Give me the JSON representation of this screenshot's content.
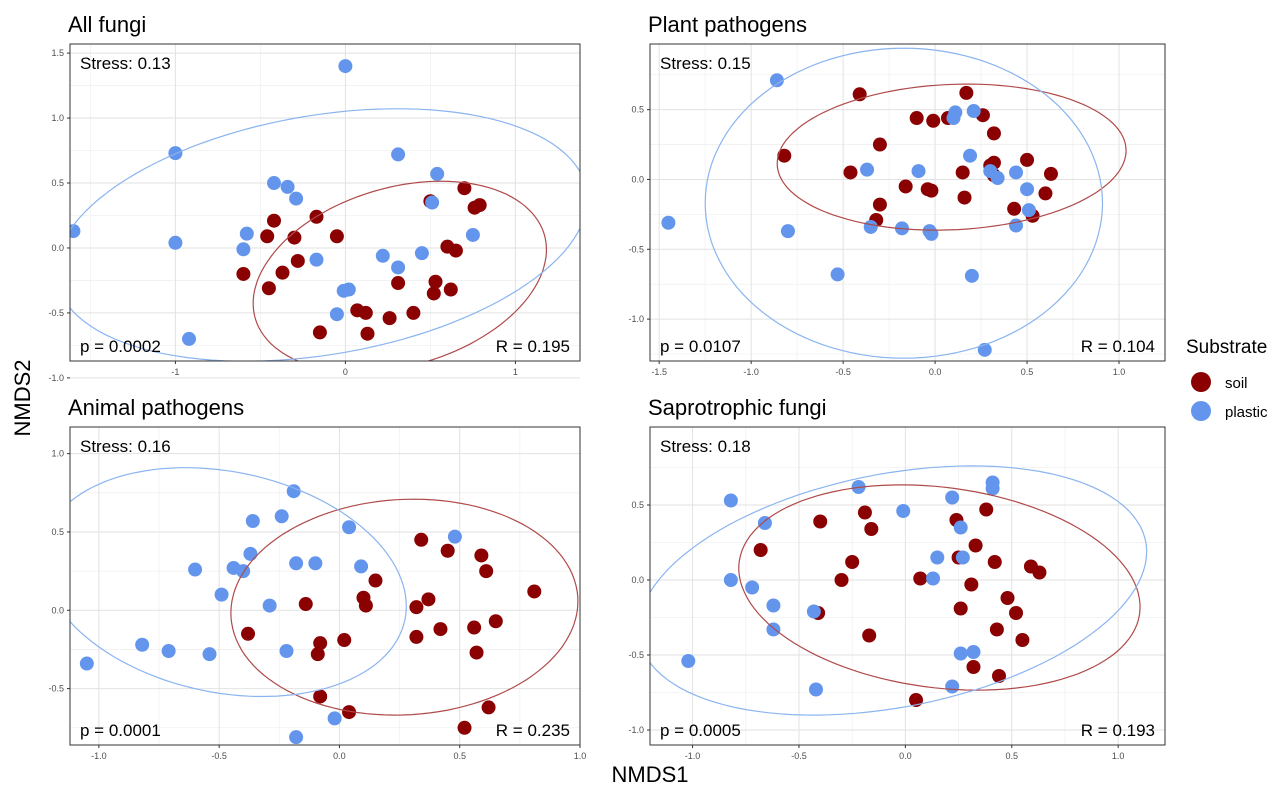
{
  "axis_titles": {
    "x": "NMDS1",
    "y": "NMDS2"
  },
  "legend": {
    "title": "Substrate",
    "items": [
      {
        "label": "soil",
        "color": "#8b0000"
      },
      {
        "label": "plastic",
        "color": "#6495ed"
      }
    ]
  },
  "chart_data": [
    {
      "type": "scatter",
      "title": "All fungi",
      "stress": "Stress: 0.13",
      "p_value": "p = 0.0002",
      "r_value": "R = 0.195",
      "xlim": [
        -1.62,
        1.38
      ],
      "ylim": [
        -0.87,
        1.57
      ],
      "xticks": [
        -1,
        0,
        1
      ],
      "yticks": [
        -1.0,
        -0.5,
        0.0,
        0.5,
        1.0,
        1.5
      ],
      "grid": true,
      "series": [
        {
          "name": "soil",
          "color": "#8b0000",
          "points": [
            [
              -0.46,
              0.09
            ],
            [
              -0.42,
              0.21
            ],
            [
              -0.3,
              0.08
            ],
            [
              -0.17,
              0.24
            ],
            [
              -0.05,
              0.09
            ],
            [
              -0.6,
              -0.2
            ],
            [
              -0.45,
              -0.31
            ],
            [
              -0.37,
              -0.19
            ],
            [
              -0.28,
              -0.1
            ],
            [
              -0.15,
              -0.65
            ],
            [
              0.07,
              -0.48
            ],
            [
              0.12,
              -0.5
            ],
            [
              0.13,
              -0.66
            ],
            [
              0.26,
              -0.54
            ],
            [
              0.31,
              -0.27
            ],
            [
              0.4,
              -0.5
            ],
            [
              0.5,
              0.36
            ],
            [
              0.53,
              -0.26
            ],
            [
              0.52,
              -0.35
            ],
            [
              0.62,
              -0.32
            ],
            [
              0.6,
              0.01
            ],
            [
              0.65,
              -0.02
            ],
            [
              0.7,
              0.46
            ],
            [
              0.76,
              0.31
            ],
            [
              0.79,
              0.33
            ]
          ]
        },
        {
          "name": "plastic",
          "color": "#6495ed",
          "points": [
            [
              -1.6,
              0.13
            ],
            [
              -1.0,
              0.73
            ],
            [
              -1.0,
              0.04
            ],
            [
              -0.92,
              -0.7
            ],
            [
              -0.6,
              -0.01
            ],
            [
              -0.58,
              0.11
            ],
            [
              -0.42,
              0.5
            ],
            [
              -0.34,
              0.47
            ],
            [
              -0.29,
              0.38
            ],
            [
              -0.17,
              -0.09
            ],
            [
              -0.05,
              -0.51
            ],
            [
              -0.01,
              -0.33
            ],
            [
              0.02,
              -0.32
            ],
            [
              0.0,
              1.4
            ],
            [
              0.22,
              -0.06
            ],
            [
              0.31,
              -0.15
            ],
            [
              0.31,
              0.72
            ],
            [
              0.45,
              -0.04
            ],
            [
              0.51,
              0.35
            ],
            [
              0.54,
              0.57
            ],
            [
              0.75,
              0.1
            ]
          ]
        }
      ],
      "ellipses": [
        {
          "group": "soil",
          "color": "#b04a4a",
          "cx": 0.32,
          "cy": -0.22,
          "rx": 0.92,
          "ry": 0.66,
          "angle": 30
        },
        {
          "group": "plastic",
          "color": "#8ab4f0",
          "cx": -0.14,
          "cy": 0.1,
          "rx": 1.6,
          "ry": 0.91,
          "angle": 15
        }
      ]
    },
    {
      "type": "scatter",
      "title": "Plant pathogens",
      "stress": "Stress: 0.15",
      "p_value": "p = 0.0107",
      "r_value": "R = 0.104",
      "xlim": [
        -1.55,
        1.25
      ],
      "ylim": [
        -1.3,
        0.97
      ],
      "xticks": [
        -1.5,
        -1.0,
        -0.5,
        0.0,
        0.5,
        1.0
      ],
      "yticks": [
        -1.0,
        -0.5,
        0.0,
        0.5
      ],
      "grid": true,
      "series": [
        {
          "name": "soil",
          "color": "#8b0000",
          "points": [
            [
              -0.82,
              0.17
            ],
            [
              -0.41,
              0.61
            ],
            [
              -0.46,
              0.05
            ],
            [
              -0.3,
              0.25
            ],
            [
              -0.3,
              -0.18
            ],
            [
              -0.32,
              -0.29
            ],
            [
              -0.16,
              -0.05
            ],
            [
              -0.1,
              0.44
            ],
            [
              -0.04,
              -0.07
            ],
            [
              -0.02,
              -0.08
            ],
            [
              -0.01,
              0.42
            ],
            [
              0.07,
              0.44
            ],
            [
              0.17,
              0.62
            ],
            [
              0.26,
              0.46
            ],
            [
              0.15,
              0.05
            ],
            [
              0.16,
              -0.13
            ],
            [
              0.3,
              0.1
            ],
            [
              0.32,
              0.03
            ],
            [
              0.32,
              0.12
            ],
            [
              0.32,
              0.33
            ],
            [
              0.43,
              -0.21
            ],
            [
              0.5,
              0.14
            ],
            [
              0.53,
              -0.26
            ],
            [
              0.6,
              -0.1
            ],
            [
              0.63,
              0.04
            ]
          ]
        },
        {
          "name": "plastic",
          "color": "#6495ed",
          "points": [
            [
              -1.45,
              -0.31
            ],
            [
              -0.86,
              0.71
            ],
            [
              -0.8,
              -0.37
            ],
            [
              -0.53,
              -0.68
            ],
            [
              -0.37,
              0.07
            ],
            [
              -0.35,
              -0.34
            ],
            [
              -0.18,
              -0.35
            ],
            [
              -0.09,
              0.06
            ],
            [
              -0.03,
              -0.37
            ],
            [
              -0.02,
              -0.39
            ],
            [
              0.1,
              0.44
            ],
            [
              0.11,
              0.48
            ],
            [
              0.19,
              0.17
            ],
            [
              0.21,
              0.49
            ],
            [
              0.2,
              -0.69
            ],
            [
              0.27,
              -1.22
            ],
            [
              0.3,
              0.06
            ],
            [
              0.34,
              0.01
            ],
            [
              0.44,
              0.05
            ],
            [
              0.44,
              -0.33
            ],
            [
              0.5,
              -0.07
            ],
            [
              0.51,
              -0.22
            ]
          ]
        }
      ],
      "ellipses": [
        {
          "group": "soil",
          "color": "#b04a4a",
          "cx": 0.09,
          "cy": 0.16,
          "rx": 0.95,
          "ry": 0.52,
          "angle": 4
        },
        {
          "group": "plastic",
          "color": "#8ab4f0",
          "cx": -0.17,
          "cy": -0.17,
          "rx": 1.08,
          "ry": 1.11,
          "angle": 0
        }
      ]
    },
    {
      "type": "scatter",
      "title": "Animal pathogens",
      "stress": "Stress: 0.16",
      "p_value": "p = 0.0001",
      "r_value": "R = 0.235",
      "xlim": [
        -1.12,
        1.0
      ],
      "ylim": [
        -0.86,
        1.17
      ],
      "xticks": [
        -1.0,
        -0.5,
        0.0,
        0.5,
        1.0
      ],
      "yticks": [
        -0.5,
        0.0,
        0.5,
        1.0
      ],
      "grid": true,
      "series": [
        {
          "name": "soil",
          "color": "#8b0000",
          "points": [
            [
              -0.38,
              -0.15
            ],
            [
              -0.14,
              0.04
            ],
            [
              -0.08,
              -0.21
            ],
            [
              -0.09,
              -0.28
            ],
            [
              -0.08,
              -0.55
            ],
            [
              0.02,
              -0.19
            ],
            [
              0.04,
              -0.65
            ],
            [
              0.1,
              0.08
            ],
            [
              0.11,
              0.03
            ],
            [
              0.15,
              0.19
            ],
            [
              0.32,
              -0.17
            ],
            [
              0.32,
              0.02
            ],
            [
              0.34,
              0.45
            ],
            [
              0.37,
              0.07
            ],
            [
              0.42,
              -0.12
            ],
            [
              0.45,
              0.38
            ],
            [
              0.56,
              -0.11
            ],
            [
              0.57,
              -0.27
            ],
            [
              0.59,
              0.35
            ],
            [
              0.61,
              0.25
            ],
            [
              0.62,
              -0.62
            ],
            [
              0.65,
              -0.07
            ],
            [
              0.52,
              -0.75
            ],
            [
              0.81,
              0.12
            ]
          ]
        },
        {
          "name": "plastic",
          "color": "#6495ed",
          "points": [
            [
              -1.05,
              -0.34
            ],
            [
              -0.82,
              -0.22
            ],
            [
              -0.71,
              -0.26
            ],
            [
              -0.6,
              0.26
            ],
            [
              -0.54,
              -0.28
            ],
            [
              -0.49,
              0.1
            ],
            [
              -0.44,
              0.27
            ],
            [
              -0.4,
              0.25
            ],
            [
              -0.37,
              0.36
            ],
            [
              -0.36,
              0.57
            ],
            [
              -0.29,
              0.03
            ],
            [
              -0.24,
              0.6
            ],
            [
              -0.22,
              -0.26
            ],
            [
              -0.19,
              0.76
            ],
            [
              -0.18,
              0.3
            ],
            [
              -0.1,
              0.3
            ],
            [
              -0.18,
              -0.81
            ],
            [
              -0.02,
              -0.69
            ],
            [
              0.04,
              0.53
            ],
            [
              0.09,
              0.28
            ],
            [
              0.48,
              0.47
            ]
          ]
        }
      ],
      "ellipses": [
        {
          "group": "soil",
          "color": "#b04a4a",
          "cx": 0.27,
          "cy": 0.02,
          "rx": 0.73,
          "ry": 0.68,
          "angle": 25
        },
        {
          "group": "plastic",
          "color": "#8ab4f0",
          "cx": -0.48,
          "cy": 0.18,
          "rx": 0.82,
          "ry": 0.66,
          "angle": -40
        }
      ]
    },
    {
      "type": "scatter",
      "title": "Saprotrophic fungi",
      "stress": "Stress: 0.18",
      "p_value": "p = 0.0005",
      "r_value": "R = 0.193",
      "xlim": [
        -1.2,
        1.22
      ],
      "ylim": [
        -1.1,
        1.02
      ],
      "xticks": [
        -1.0,
        -0.5,
        0.0,
        0.5,
        1.0
      ],
      "yticks": [
        -1.0,
        -0.5,
        0.0,
        0.5
      ],
      "grid": true,
      "series": [
        {
          "name": "soil",
          "color": "#8b0000",
          "points": [
            [
              -0.68,
              0.2
            ],
            [
              -0.4,
              0.39
            ],
            [
              -0.41,
              -0.22
            ],
            [
              -0.3,
              0.0
            ],
            [
              -0.25,
              0.12
            ],
            [
              -0.19,
              0.45
            ],
            [
              -0.16,
              0.34
            ],
            [
              -0.17,
              -0.37
            ],
            [
              0.07,
              0.01
            ],
            [
              0.05,
              -0.8
            ],
            [
              0.24,
              0.4
            ],
            [
              0.25,
              0.15
            ],
            [
              0.33,
              0.23
            ],
            [
              0.31,
              -0.03
            ],
            [
              0.38,
              0.47
            ],
            [
              0.42,
              0.12
            ],
            [
              0.43,
              -0.33
            ],
            [
              0.48,
              -0.12
            ],
            [
              0.52,
              -0.22
            ],
            [
              0.55,
              -0.4
            ],
            [
              0.59,
              0.09
            ],
            [
              0.63,
              0.05
            ],
            [
              0.44,
              -0.64
            ],
            [
              0.32,
              -0.58
            ],
            [
              0.26,
              -0.19
            ]
          ]
        },
        {
          "name": "plastic",
          "color": "#6495ed",
          "points": [
            [
              -1.02,
              -0.54
            ],
            [
              -0.82,
              0.53
            ],
            [
              -0.82,
              0.0
            ],
            [
              -0.72,
              -0.05
            ],
            [
              -0.66,
              0.38
            ],
            [
              -0.62,
              -0.17
            ],
            [
              -0.62,
              -0.33
            ],
            [
              -0.43,
              -0.21
            ],
            [
              -0.42,
              -0.73
            ],
            [
              -0.22,
              0.62
            ],
            [
              -0.01,
              0.46
            ],
            [
              0.13,
              0.01
            ],
            [
              0.15,
              0.15
            ],
            [
              0.22,
              0.55
            ],
            [
              0.22,
              -0.71
            ],
            [
              0.26,
              0.35
            ],
            [
              0.26,
              -0.49
            ],
            [
              0.27,
              0.15
            ],
            [
              0.32,
              -0.48
            ],
            [
              0.41,
              0.61
            ],
            [
              0.41,
              0.65
            ]
          ]
        }
      ],
      "ellipses": [
        {
          "group": "soil",
          "color": "#b04a4a",
          "cx": 0.16,
          "cy": -0.05,
          "rx": 0.96,
          "ry": 0.66,
          "angle": -15
        },
        {
          "group": "plastic",
          "color": "#8ab4f0",
          "cx": -0.06,
          "cy": -0.07,
          "rx": 1.24,
          "ry": 0.76,
          "angle": 20
        }
      ]
    }
  ]
}
